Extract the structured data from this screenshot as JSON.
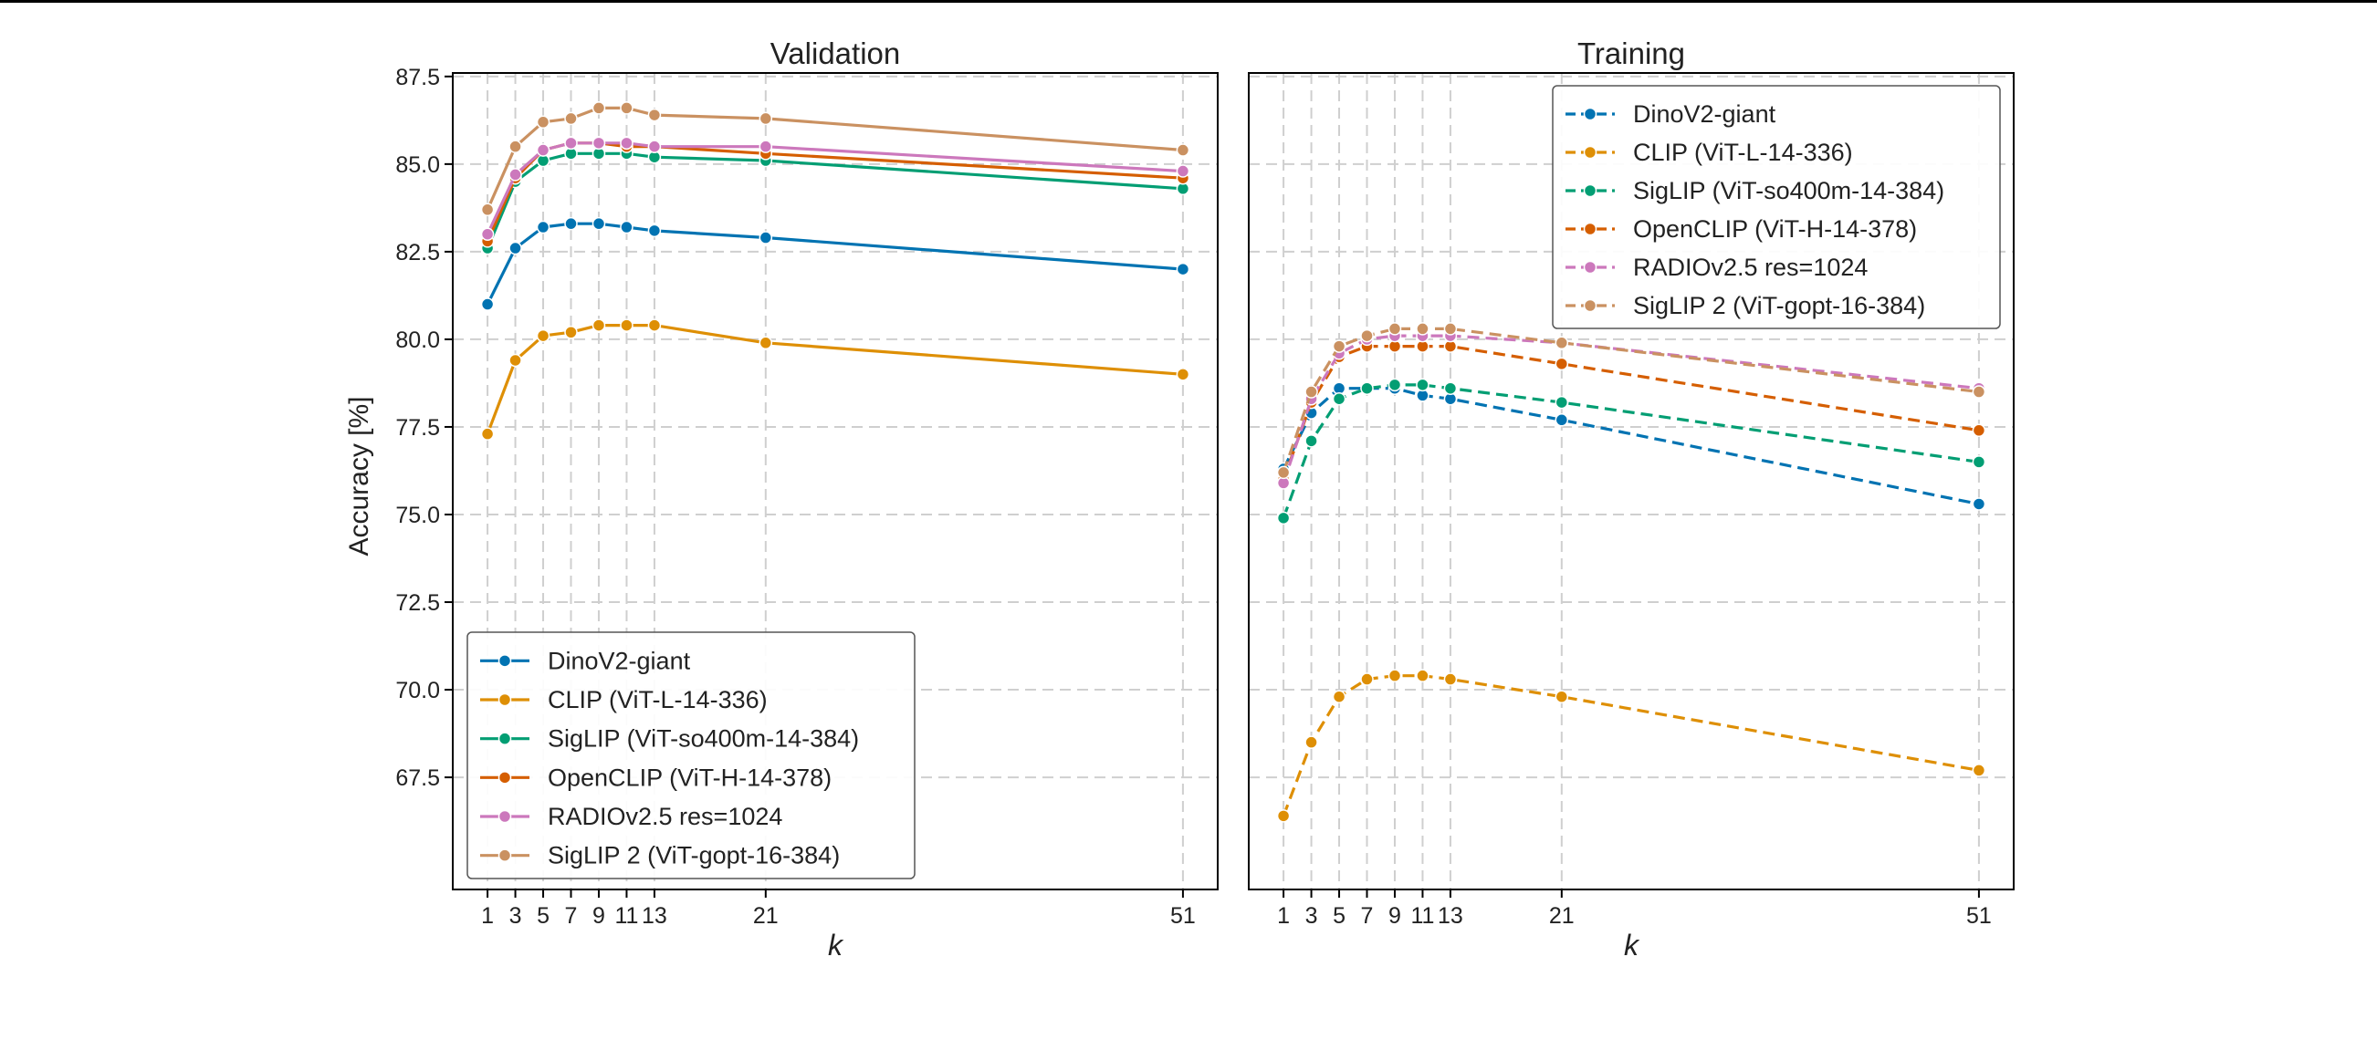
{
  "chart_data": {
    "type": "line",
    "ylabel": "Accuracy [%]",
    "xlabel": "k",
    "xticks": [
      1,
      3,
      5,
      7,
      9,
      11,
      13,
      21,
      51
    ],
    "x": [
      1,
      3,
      5,
      7,
      9,
      11,
      13,
      21,
      51
    ],
    "xlim": [
      -1.5,
      53.5
    ],
    "ylim": [
      64.3,
      87.6
    ],
    "yticks": [
      "67.5",
      "70.0",
      "72.5",
      "75.0",
      "77.5",
      "80.0",
      "82.5",
      "85.0",
      "87.5"
    ],
    "grid": true,
    "colors": {
      "DinoV2-giant": "#0173b2",
      "CLIP (ViT-L-14-336)": "#de8f05",
      "SigLIP (ViT-so400m-14-384)": "#029e73",
      "OpenCLIP (ViT-H-14-378)": "#d55e00",
      "RADIOv2.5 res=1024": "#cc78bc",
      "SigLIP 2 (ViT-gopt-16-384)": "#ca9161"
    },
    "panels": [
      {
        "title": "Validation",
        "line_style": "solid",
        "legend_position": "lower-left",
        "series": [
          {
            "name": "DinoV2-giant",
            "values": [
              81.0,
              82.6,
              83.2,
              83.3,
              83.3,
              83.2,
              83.1,
              82.9,
              82.0
            ]
          },
          {
            "name": "CLIP (ViT-L-14-336)",
            "values": [
              77.3,
              79.4,
              80.1,
              80.2,
              80.4,
              80.4,
              80.4,
              79.9,
              79.0
            ]
          },
          {
            "name": "SigLIP (ViT-so400m-14-384)",
            "values": [
              82.6,
              84.5,
              85.1,
              85.3,
              85.3,
              85.3,
              85.2,
              85.1,
              84.3
            ]
          },
          {
            "name": "OpenCLIP (ViT-H-14-378)",
            "values": [
              82.8,
              84.6,
              85.4,
              85.6,
              85.6,
              85.5,
              85.5,
              85.3,
              84.6
            ]
          },
          {
            "name": "RADIOv2.5 res=1024",
            "values": [
              83.0,
              84.7,
              85.4,
              85.6,
              85.6,
              85.6,
              85.5,
              85.5,
              84.8
            ]
          },
          {
            "name": "SigLIP 2 (ViT-gopt-16-384)",
            "values": [
              83.7,
              85.5,
              86.2,
              86.3,
              86.6,
              86.6,
              86.4,
              86.3,
              85.4
            ]
          }
        ]
      },
      {
        "title": "Training",
        "line_style": "dashed",
        "legend_position": "upper-right",
        "series": [
          {
            "name": "DinoV2-giant",
            "values": [
              76.3,
              77.9,
              78.6,
              78.6,
              78.6,
              78.4,
              78.3,
              77.7,
              75.3
            ]
          },
          {
            "name": "CLIP (ViT-L-14-336)",
            "values": [
              66.4,
              68.5,
              69.8,
              70.3,
              70.4,
              70.4,
              70.3,
              69.8,
              67.7
            ]
          },
          {
            "name": "SigLIP (ViT-so400m-14-384)",
            "values": [
              74.9,
              77.1,
              78.3,
              78.6,
              78.7,
              78.7,
              78.6,
              78.2,
              76.5
            ]
          },
          {
            "name": "OpenCLIP (ViT-H-14-378)",
            "values": [
              76.0,
              78.2,
              79.5,
              79.8,
              79.8,
              79.8,
              79.8,
              79.3,
              77.4
            ]
          },
          {
            "name": "RADIOv2.5 res=1024",
            "values": [
              75.9,
              78.3,
              79.6,
              80.0,
              80.1,
              80.1,
              80.1,
              79.9,
              78.6
            ]
          },
          {
            "name": "SigLIP 2 (ViT-gopt-16-384)",
            "values": [
              76.2,
              78.5,
              79.8,
              80.1,
              80.3,
              80.3,
              80.3,
              79.9,
              78.5
            ]
          }
        ]
      }
    ]
  }
}
